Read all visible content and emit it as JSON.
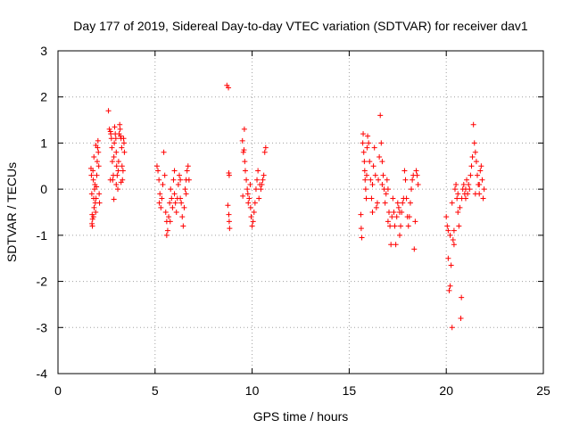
{
  "chart_data": {
    "type": "scatter",
    "title": "Day 177 of 2019, Sidereal Day-to-day VTEC variation (SDTVAR) for receiver dav1",
    "xlabel": "GPS time / hours",
    "ylabel": "SDTVAR / TECUs",
    "xlim": [
      0,
      25
    ],
    "ylim": [
      -4,
      3
    ],
    "xticks": [
      0,
      5,
      10,
      15,
      20,
      25
    ],
    "yticks": [
      -4,
      -3,
      -2,
      -1,
      0,
      1,
      2,
      3
    ],
    "grid": true,
    "marker": "+",
    "color": "#ff0000",
    "series": [
      {
        "name": "SDTVAR",
        "points": [
          [
            1.7,
            0.45
          ],
          [
            1.72,
            0.3
          ],
          [
            1.74,
            -0.1
          ],
          [
            1.75,
            -0.75
          ],
          [
            1.77,
            -0.8
          ],
          [
            1.78,
            -0.65
          ],
          [
            1.8,
            0.4
          ],
          [
            1.82,
            0.2
          ],
          [
            1.84,
            -0.2
          ],
          [
            1.86,
            -0.4
          ],
          [
            1.88,
            0.0
          ],
          [
            1.9,
            0.1
          ],
          [
            1.92,
            -0.3
          ],
          [
            1.94,
            -0.5
          ],
          [
            1.96,
            -0.2
          ],
          [
            1.98,
            0.05
          ],
          [
            2.0,
            0.3
          ],
          [
            2.02,
            0.6
          ],
          [
            2.04,
            0.9
          ],
          [
            2.06,
            1.05
          ],
          [
            2.08,
            0.8
          ],
          [
            2.1,
            0.5
          ],
          [
            2.12,
            -0.1
          ],
          [
            2.14,
            -0.3
          ],
          [
            1.85,
            0.7
          ],
          [
            1.95,
            0.95
          ],
          [
            1.76,
            -0.55
          ],
          [
            1.83,
            -0.6
          ],
          [
            2.6,
            1.7
          ],
          [
            2.65,
            1.3
          ],
          [
            2.7,
            1.25
          ],
          [
            2.72,
            1.2
          ],
          [
            2.75,
            1.1
          ],
          [
            2.78,
            0.9
          ],
          [
            2.8,
            0.6
          ],
          [
            2.82,
            0.2
          ],
          [
            2.85,
            0.3
          ],
          [
            2.88,
            0.7
          ],
          [
            2.9,
            1.0
          ],
          [
            2.92,
            1.35
          ],
          [
            2.95,
            1.2
          ],
          [
            2.98,
            1.1
          ],
          [
            3.0,
            0.8
          ],
          [
            3.02,
            0.5
          ],
          [
            3.05,
            0.3
          ],
          [
            3.08,
            0.0
          ],
          [
            3.1,
            0.4
          ],
          [
            3.12,
            0.6
          ],
          [
            3.15,
            1.2
          ],
          [
            3.18,
            1.4
          ],
          [
            3.2,
            1.3
          ],
          [
            3.22,
            1.15
          ],
          [
            3.25,
            1.1
          ],
          [
            3.28,
            0.9
          ],
          [
            3.3,
            0.5
          ],
          [
            3.32,
            0.2
          ],
          [
            3.35,
            0.4
          ],
          [
            3.38,
            1.1
          ],
          [
            3.4,
            1.0
          ],
          [
            3.42,
            0.8
          ],
          [
            2.88,
            -0.22
          ],
          [
            2.7,
            0.2
          ],
          [
            3.0,
            0.1
          ],
          [
            3.25,
            0.15
          ],
          [
            5.1,
            0.5
          ],
          [
            5.15,
            0.4
          ],
          [
            5.2,
            0.2
          ],
          [
            5.25,
            -0.1
          ],
          [
            5.3,
            -0.4
          ],
          [
            5.35,
            -0.2
          ],
          [
            5.4,
            0.1
          ],
          [
            5.45,
            0.8
          ],
          [
            5.5,
            0.3
          ],
          [
            5.55,
            -0.5
          ],
          [
            5.6,
            -0.7
          ],
          [
            5.65,
            -0.9
          ],
          [
            5.7,
            -0.6
          ],
          [
            5.75,
            -0.3
          ],
          [
            5.8,
            0.0
          ],
          [
            5.85,
            -0.2
          ],
          [
            5.9,
            -0.4
          ],
          [
            5.95,
            0.2
          ],
          [
            6.0,
            0.4
          ],
          [
            6.05,
            -0.3
          ],
          [
            6.1,
            -0.5
          ],
          [
            6.15,
            -0.2
          ],
          [
            6.2,
            0.1
          ],
          [
            6.25,
            0.3
          ],
          [
            6.3,
            0.2
          ],
          [
            6.35,
            -0.3
          ],
          [
            6.4,
            -0.6
          ],
          [
            6.45,
            -0.8
          ],
          [
            6.5,
            -0.4
          ],
          [
            6.55,
            0.0
          ],
          [
            6.6,
            0.2
          ],
          [
            6.65,
            0.4
          ],
          [
            6.7,
            0.5
          ],
          [
            6.75,
            0.2
          ],
          [
            5.6,
            -1.0
          ],
          [
            5.22,
            -0.3
          ],
          [
            5.78,
            -0.7
          ],
          [
            6.0,
            -0.1
          ],
          [
            6.3,
            -0.2
          ],
          [
            6.6,
            -0.1
          ],
          [
            8.7,
            2.25
          ],
          [
            8.78,
            2.2
          ],
          [
            8.8,
            0.35
          ],
          [
            8.82,
            0.3
          ],
          [
            8.75,
            -0.35
          ],
          [
            8.8,
            -0.55
          ],
          [
            8.82,
            -0.7
          ],
          [
            8.84,
            -0.85
          ],
          [
            9.5,
            1.05
          ],
          [
            9.55,
            0.8
          ],
          [
            9.6,
            1.3
          ],
          [
            9.62,
            0.6
          ],
          [
            9.65,
            0.4
          ],
          [
            9.7,
            0.2
          ],
          [
            9.75,
            0.0
          ],
          [
            9.78,
            -0.1
          ],
          [
            9.8,
            -0.3
          ],
          [
            9.85,
            -0.2
          ],
          [
            9.9,
            0.1
          ],
          [
            9.92,
            -0.4
          ],
          [
            9.95,
            -0.6
          ],
          [
            10.0,
            -0.8
          ],
          [
            10.05,
            -0.7
          ],
          [
            10.1,
            -0.5
          ],
          [
            10.15,
            -0.3
          ],
          [
            10.2,
            0.0
          ],
          [
            10.25,
            0.2
          ],
          [
            10.3,
            0.4
          ],
          [
            10.35,
            -0.2
          ],
          [
            10.4,
            0.1
          ],
          [
            10.45,
            0.0
          ],
          [
            10.5,
            0.1
          ],
          [
            10.55,
            0.2
          ],
          [
            10.6,
            0.3
          ],
          [
            10.65,
            0.8
          ],
          [
            10.7,
            0.9
          ],
          [
            9.52,
            -0.15
          ],
          [
            9.58,
            0.85
          ],
          [
            15.6,
            -0.55
          ],
          [
            15.62,
            -0.85
          ],
          [
            15.65,
            -1.05
          ],
          [
            15.7,
            1.0
          ],
          [
            15.72,
            1.2
          ],
          [
            15.75,
            0.8
          ],
          [
            15.78,
            0.6
          ],
          [
            15.8,
            0.4
          ],
          [
            15.82,
            0.2
          ],
          [
            15.85,
            0.0
          ],
          [
            15.88,
            -0.2
          ],
          [
            15.9,
            0.3
          ],
          [
            15.92,
            0.9
          ],
          [
            15.95,
            1.15
          ],
          [
            16.0,
            1.0
          ],
          [
            16.05,
            0.6
          ],
          [
            16.1,
            0.2
          ],
          [
            16.15,
            -0.2
          ],
          [
            16.2,
            0.1
          ],
          [
            16.25,
            0.5
          ],
          [
            16.3,
            0.9
          ],
          [
            16.35,
            0.3
          ],
          [
            16.4,
            -0.4
          ],
          [
            16.45,
            -0.3
          ],
          [
            16.5,
            0.2
          ],
          [
            16.55,
            0.7
          ],
          [
            16.6,
            1.6
          ],
          [
            16.65,
            1.0
          ],
          [
            16.7,
            0.6
          ],
          [
            16.75,
            0.3
          ],
          [
            16.8,
            0.0
          ],
          [
            16.85,
            -0.3
          ],
          [
            16.9,
            -0.1
          ],
          [
            16.95,
            0.2
          ],
          [
            17.0,
            0.0
          ],
          [
            17.05,
            -0.5
          ],
          [
            17.1,
            -0.8
          ],
          [
            17.15,
            -1.2
          ],
          [
            17.2,
            -0.6
          ],
          [
            17.25,
            -0.2
          ],
          [
            17.3,
            -0.5
          ],
          [
            17.35,
            -0.8
          ],
          [
            17.4,
            -1.2
          ],
          [
            17.45,
            -0.6
          ],
          [
            17.5,
            -0.3
          ],
          [
            17.55,
            -0.4
          ],
          [
            17.6,
            -0.5
          ],
          [
            17.65,
            -0.8
          ],
          [
            17.7,
            -0.5
          ],
          [
            17.75,
            -0.3
          ],
          [
            17.8,
            -0.2
          ],
          [
            17.85,
            0.4
          ],
          [
            17.9,
            0.2
          ],
          [
            17.95,
            -0.2
          ],
          [
            18.0,
            -0.6
          ],
          [
            18.05,
            -0.8
          ],
          [
            18.1,
            -0.6
          ],
          [
            18.15,
            -0.3
          ],
          [
            18.2,
            0.0
          ],
          [
            18.25,
            0.2
          ],
          [
            18.3,
            0.3
          ],
          [
            18.35,
            -1.3
          ],
          [
            18.4,
            -0.7
          ],
          [
            18.45,
            0.4
          ],
          [
            18.5,
            0.3
          ],
          [
            18.55,
            0.1
          ],
          [
            16.2,
            -0.5
          ],
          [
            17.6,
            -1.0
          ],
          [
            17.0,
            -0.7
          ],
          [
            16.7,
            0.1
          ],
          [
            20.0,
            -0.6
          ],
          [
            20.05,
            -0.8
          ],
          [
            20.1,
            -1.5
          ],
          [
            20.15,
            -2.2
          ],
          [
            20.2,
            -2.1
          ],
          [
            20.25,
            -1.65
          ],
          [
            20.3,
            -3.0
          ],
          [
            20.35,
            -1.1
          ],
          [
            20.4,
            -0.9
          ],
          [
            20.45,
            0.0
          ],
          [
            20.5,
            0.1
          ],
          [
            20.55,
            -0.2
          ],
          [
            20.6,
            -0.5
          ],
          [
            20.65,
            -0.8
          ],
          [
            20.7,
            -0.4
          ],
          [
            20.75,
            -2.8
          ],
          [
            20.78,
            -2.35
          ],
          [
            20.8,
            -0.2
          ],
          [
            20.85,
            0.0
          ],
          [
            20.9,
            0.1
          ],
          [
            20.95,
            -0.1
          ],
          [
            21.0,
            0.0
          ],
          [
            21.05,
            0.2
          ],
          [
            21.1,
            -0.1
          ],
          [
            21.15,
            0.1
          ],
          [
            21.2,
            0.0
          ],
          [
            21.25,
            0.3
          ],
          [
            21.3,
            0.5
          ],
          [
            21.35,
            0.7
          ],
          [
            21.4,
            1.4
          ],
          [
            21.45,
            1.0
          ],
          [
            21.5,
            0.8
          ],
          [
            21.55,
            0.6
          ],
          [
            21.6,
            0.3
          ],
          [
            21.65,
            0.1
          ],
          [
            21.7,
            -0.1
          ],
          [
            21.75,
            0.4
          ],
          [
            21.8,
            0.5
          ],
          [
            21.85,
            0.2
          ],
          [
            21.9,
            -0.2
          ],
          [
            21.95,
            0.0
          ],
          [
            20.1,
            -0.9
          ],
          [
            20.2,
            -1.0
          ],
          [
            20.3,
            -0.3
          ],
          [
            21.0,
            -0.2
          ],
          [
            21.5,
            -0.1
          ],
          [
            21.7,
            0.1
          ],
          [
            20.4,
            -1.2
          ],
          [
            20.6,
            -0.1
          ]
        ]
      }
    ]
  }
}
